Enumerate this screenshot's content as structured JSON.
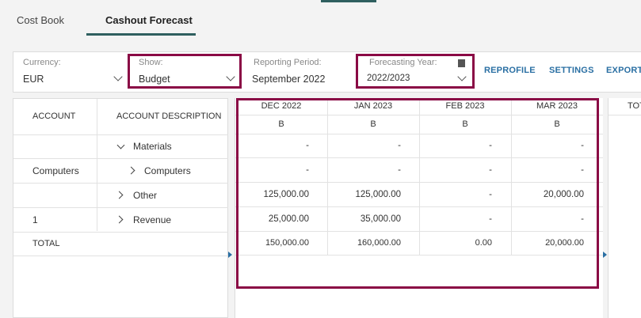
{
  "tabs": [
    {
      "label": "Cost Book"
    },
    {
      "label": "Cashout Forecast"
    }
  ],
  "filters": {
    "currency": {
      "label": "Currency:",
      "value": "EUR"
    },
    "show": {
      "label": "Show:",
      "value": "Budget"
    },
    "reporting_period": {
      "label": "Reporting Period:",
      "value": "September 2022"
    },
    "forecasting_year": {
      "label": "Forecasting Year:",
      "value": "2022/2023"
    }
  },
  "actions": {
    "reprofile": "REPROFILE",
    "settings": "SETTINGS",
    "export": "EXPORT"
  },
  "left_headers": {
    "account": "ACCOUNT",
    "description": "ACCOUNT DESCRIPTION"
  },
  "months": [
    {
      "label": "DEC 2022",
      "sub": "B"
    },
    {
      "label": "JAN 2023",
      "sub": "B"
    },
    {
      "label": "FEB 2023",
      "sub": "B"
    },
    {
      "label": "MAR 2023",
      "sub": "B"
    }
  ],
  "total_header": "TOT",
  "rows": [
    {
      "account": "",
      "description": "Materials",
      "values": [
        "-",
        "-",
        "-",
        "-"
      ]
    },
    {
      "account": "Computers",
      "description": "Computers",
      "values": [
        "-",
        "-",
        "-",
        "-"
      ]
    },
    {
      "account": "",
      "description": "Other",
      "values": [
        "125,000.00",
        "125,000.00",
        "-",
        "20,000.00"
      ]
    },
    {
      "account": "1",
      "description": "Revenue",
      "values": [
        "25,000.00",
        "35,000.00",
        "-",
        "-"
      ]
    }
  ],
  "total_row": {
    "label": "TOTAL",
    "values": [
      "150,000.00",
      "160,000.00",
      "0.00",
      "20,000.00"
    ]
  },
  "colors": {
    "highlight": "#8a0a45",
    "accent": "#2f5f5f",
    "link": "#2a6fa3"
  }
}
